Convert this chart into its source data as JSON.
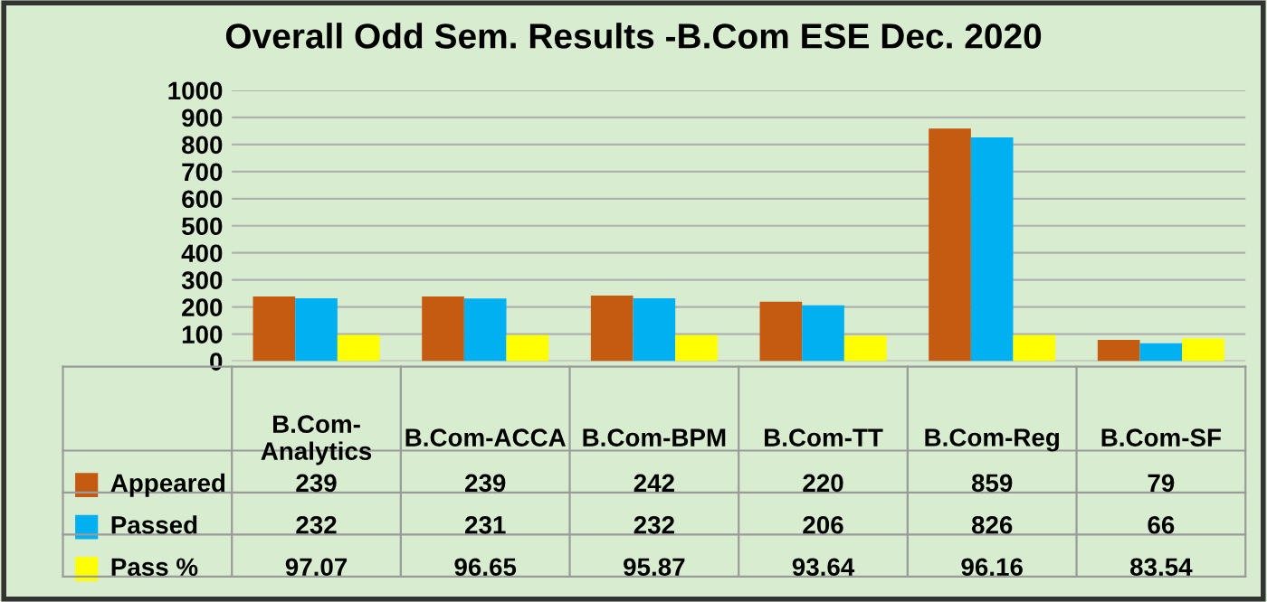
{
  "chart_data": {
    "type": "bar",
    "title": "Overall Odd Sem. Results -B.Com ESE Dec. 2020",
    "categories": [
      "B.Com-\nAnalytics",
      "B.Com-ACCA",
      "B.Com-BPM",
      "B.Com-TT",
      "B.Com-Reg",
      "B.Com-SF"
    ],
    "series": [
      {
        "name": "Appeared",
        "color": "#c55a11",
        "values": [
          239,
          239,
          242,
          220,
          859,
          79
        ]
      },
      {
        "name": "Passed",
        "color": "#00b0f0",
        "values": [
          232,
          231,
          232,
          206,
          826,
          66
        ]
      },
      {
        "name": "Pass %",
        "color": "#ffff00",
        "values": [
          97.07,
          96.65,
          95.87,
          93.64,
          96.16,
          83.54
        ]
      }
    ],
    "ylim": [
      0,
      1000
    ],
    "yticks": [
      0,
      100,
      200,
      300,
      400,
      500,
      600,
      700,
      800,
      900,
      1000
    ],
    "grid": "y",
    "data_labels": true,
    "legend": "bottom"
  }
}
